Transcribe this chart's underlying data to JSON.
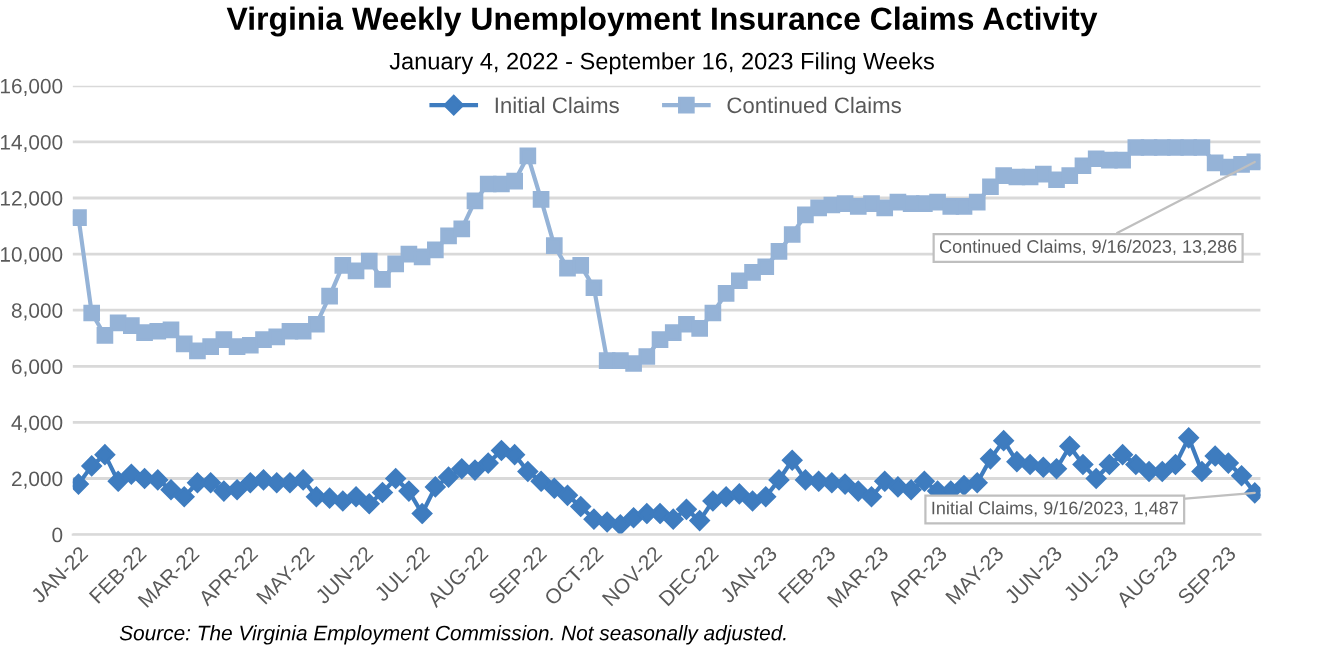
{
  "chart_data": {
    "type": "line",
    "title": "Virginia Weekly Unemployment Insurance Claims Activity",
    "subtitle": "January 4, 2022 - September 16, 2023 Filing Weeks",
    "x": [
      "2022-01-01",
      "2022-01-08",
      "2022-01-15",
      "2022-01-22",
      "2022-01-29",
      "2022-02-05",
      "2022-02-12",
      "2022-02-19",
      "2022-02-26",
      "2022-03-05",
      "2022-03-12",
      "2022-03-19",
      "2022-03-26",
      "2022-04-02",
      "2022-04-09",
      "2022-04-16",
      "2022-04-23",
      "2022-04-30",
      "2022-05-07",
      "2022-05-14",
      "2022-05-21",
      "2022-05-28",
      "2022-06-04",
      "2022-06-11",
      "2022-06-18",
      "2022-06-25",
      "2022-07-02",
      "2022-07-09",
      "2022-07-16",
      "2022-07-23",
      "2022-07-30",
      "2022-08-06",
      "2022-08-13",
      "2022-08-20",
      "2022-08-27",
      "2022-09-03",
      "2022-09-10",
      "2022-09-17",
      "2022-09-24",
      "2022-10-01",
      "2022-10-08",
      "2022-10-15",
      "2022-10-22",
      "2022-10-29",
      "2022-11-05",
      "2022-11-12",
      "2022-11-19",
      "2022-11-26",
      "2022-12-03",
      "2022-12-10",
      "2022-12-17",
      "2022-12-24",
      "2022-12-31",
      "2023-01-07",
      "2023-01-14",
      "2023-01-21",
      "2023-01-28",
      "2023-02-04",
      "2023-02-11",
      "2023-02-18",
      "2023-02-25",
      "2023-03-04",
      "2023-03-11",
      "2023-03-18",
      "2023-03-25",
      "2023-04-01",
      "2023-04-08",
      "2023-04-15",
      "2023-04-22",
      "2023-04-29",
      "2023-05-06",
      "2023-05-13",
      "2023-05-20",
      "2023-05-27",
      "2023-06-03",
      "2023-06-10",
      "2023-06-17",
      "2023-06-24",
      "2023-07-01",
      "2023-07-08",
      "2023-07-15",
      "2023-07-22",
      "2023-07-29",
      "2023-08-05",
      "2023-08-12",
      "2023-08-19",
      "2023-08-26",
      "2023-09-02",
      "2023-09-09",
      "2023-09-16"
    ],
    "series": [
      {
        "name": "Initial Claims",
        "color": "#3e7cbf",
        "marker": "diamond",
        "values": [
          1800,
          2450,
          2850,
          1900,
          2150,
          2000,
          1950,
          1600,
          1350,
          1850,
          1850,
          1550,
          1600,
          1850,
          1950,
          1850,
          1850,
          1950,
          1350,
          1300,
          1200,
          1350,
          1100,
          1500,
          2000,
          1550,
          750,
          1700,
          2050,
          2350,
          2300,
          2550,
          3000,
          2850,
          2250,
          1900,
          1650,
          1400,
          1000,
          550,
          450,
          350,
          600,
          750,
          750,
          550,
          900,
          500,
          1200,
          1350,
          1450,
          1200,
          1350,
          1950,
          2650,
          1950,
          1900,
          1850,
          1800,
          1550,
          1350,
          1900,
          1700,
          1600,
          1900,
          1550,
          1550,
          1750,
          1850,
          2700,
          3350,
          2600,
          2500,
          2400,
          2350,
          3150,
          2500,
          2000,
          2500,
          2850,
          2500,
          2250,
          2250,
          2500,
          3450,
          2250,
          2800,
          2550,
          2100,
          1487
        ]
      },
      {
        "name": "Continued Claims",
        "color": "#95b3d7",
        "marker": "square",
        "values": [
          11300,
          7900,
          7100,
          7550,
          7450,
          7200,
          7250,
          7300,
          6800,
          6550,
          6700,
          6950,
          6700,
          6750,
          6950,
          7050,
          7250,
          7250,
          7500,
          8500,
          9600,
          9400,
          9750,
          9100,
          9650,
          10000,
          9900,
          10150,
          10650,
          10900,
          11900,
          12500,
          12500,
          12600,
          13500,
          11950,
          10300,
          9500,
          9600,
          8800,
          6200,
          6200,
          6100,
          6350,
          6950,
          7200,
          7500,
          7350,
          7900,
          8600,
          9050,
          9350,
          9550,
          10100,
          10700,
          11400,
          11650,
          11750,
          11800,
          11700,
          11800,
          11650,
          11850,
          11800,
          11800,
          11850,
          11700,
          11700,
          11850,
          12400,
          12800,
          12750,
          12750,
          12850,
          12650,
          12800,
          13150,
          13400,
          13350,
          13350,
          13800,
          13800,
          13800,
          13800,
          13800,
          13800,
          13250,
          13100,
          13200,
          13286
        ]
      }
    ],
    "ylim": [
      0,
      16000
    ],
    "yticks": [
      {
        "value": 0,
        "label": "0"
      },
      {
        "value": 2000,
        "label": "2,000"
      },
      {
        "value": 4000,
        "label": "4,000"
      },
      {
        "value": 6000,
        "label": "6,000"
      },
      {
        "value": 8000,
        "label": "8,000"
      },
      {
        "value": 10000,
        "label": "10,000"
      },
      {
        "value": 12000,
        "label": "12,000"
      },
      {
        "value": 14000,
        "label": "14,000"
      },
      {
        "value": 16000,
        "label": "16,000"
      }
    ],
    "xlim": [
      "2021-12-29",
      "2023-09-19"
    ],
    "xticks": [
      {
        "value": "2022-01-01",
        "label": "JAN-22"
      },
      {
        "value": "2022-02-01",
        "label": "FEB-22"
      },
      {
        "value": "2022-03-01",
        "label": "MAR-22"
      },
      {
        "value": "2022-04-01",
        "label": "APR-22"
      },
      {
        "value": "2022-05-01",
        "label": "MAY-22"
      },
      {
        "value": "2022-06-01",
        "label": "JUN-22"
      },
      {
        "value": "2022-07-01",
        "label": "JUL-22"
      },
      {
        "value": "2022-08-01",
        "label": "AUG-22"
      },
      {
        "value": "2022-09-01",
        "label": "SEP-22"
      },
      {
        "value": "2022-10-01",
        "label": "OCT-22"
      },
      {
        "value": "2022-11-01",
        "label": "NOV-22"
      },
      {
        "value": "2022-12-01",
        "label": "DEC-22"
      },
      {
        "value": "2023-01-01",
        "label": "JAN-23"
      },
      {
        "value": "2023-02-01",
        "label": "FEB-23"
      },
      {
        "value": "2023-03-01",
        "label": "MAR-23"
      },
      {
        "value": "2023-04-01",
        "label": "APR-23"
      },
      {
        "value": "2023-05-01",
        "label": "MAY-23"
      },
      {
        "value": "2023-06-01",
        "label": "JUN-23"
      },
      {
        "value": "2023-07-01",
        "label": "JUL-23"
      },
      {
        "value": "2023-08-01",
        "label": "AUG-23"
      },
      {
        "value": "2023-09-01",
        "label": "SEP-23"
      }
    ],
    "grid": "y",
    "legend": "top",
    "annotations": [
      {
        "text": "Continued Claims, 9/16/2023, 13,286",
        "x": "2023-09-16",
        "y": 13286
      },
      {
        "text": "Initial Claims, 9/16/2023, 1,487",
        "x": "2023-09-16",
        "y": 1487
      },
      "Source: The Virginia Employment Commission. Not seasonally adjusted."
    ]
  }
}
